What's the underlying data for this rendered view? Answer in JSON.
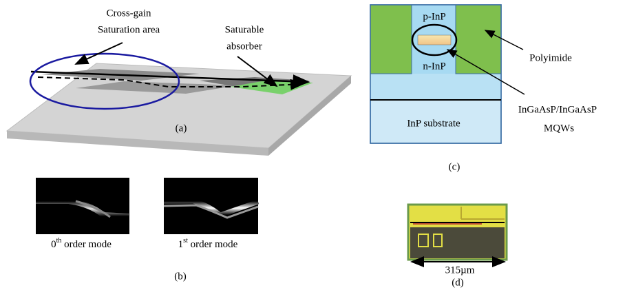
{
  "panels": {
    "a": {
      "label": "(a)",
      "callout1": [
        "Cross-gain",
        "Saturation area"
      ],
      "callout2": [
        "Saturable",
        "absorber"
      ]
    },
    "b": {
      "label": "(b)",
      "modes": [
        {
          "base": "0",
          "sup": "th",
          "rest": " order mode"
        },
        {
          "base": "1",
          "sup": "st",
          "rest": " order mode"
        }
      ]
    },
    "c": {
      "label": "(c)",
      "p_layer": "p-InP",
      "n_layer": "n-InP",
      "substrate": "InP substrate",
      "polyimide": "Polyimide",
      "mqw": [
        "InGaAsP/InGaAsP",
        "MQWs"
      ]
    },
    "d": {
      "label": "(d)",
      "scale": "315µm"
    }
  }
}
